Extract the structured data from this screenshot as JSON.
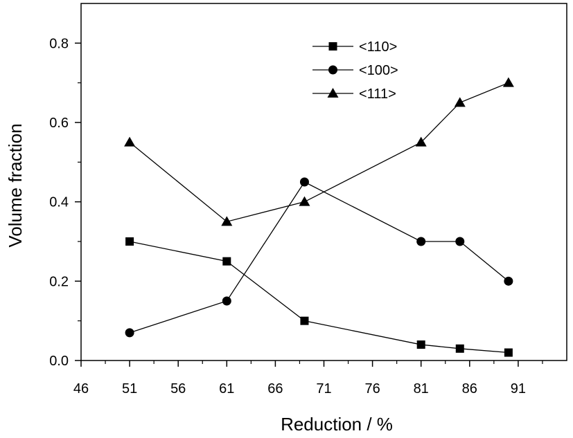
{
  "chart_data": {
    "type": "line",
    "title": "",
    "xlabel": "Reduction / %",
    "ylabel": "Volume fraction",
    "xlim": [
      46,
      96
    ],
    "ylim": [
      0,
      0.9
    ],
    "xticks": [
      "46",
      "51",
      "56",
      "61",
      "66",
      "71",
      "76",
      "81",
      "86",
      "91"
    ],
    "yticks": [
      "0.0",
      "0.2",
      "0.4",
      "0.6",
      "0.8"
    ],
    "grid": false,
    "legend_position": "top-right",
    "series": [
      {
        "name": "<110>",
        "marker": "square",
        "x": [
          51,
          61,
          69,
          81,
          85,
          90
        ],
        "y": [
          0.3,
          0.25,
          0.1,
          0.04,
          0.03,
          0.02
        ]
      },
      {
        "name": "<100>",
        "marker": "circle",
        "x": [
          51,
          61,
          69,
          81,
          85,
          90
        ],
        "y": [
          0.07,
          0.15,
          0.45,
          0.3,
          0.3,
          0.2
        ]
      },
      {
        "name": "<111>",
        "marker": "triangle",
        "x": [
          51,
          61,
          69,
          81,
          85,
          90
        ],
        "y": [
          0.55,
          0.35,
          0.4,
          0.55,
          0.65,
          0.7
        ]
      }
    ]
  }
}
